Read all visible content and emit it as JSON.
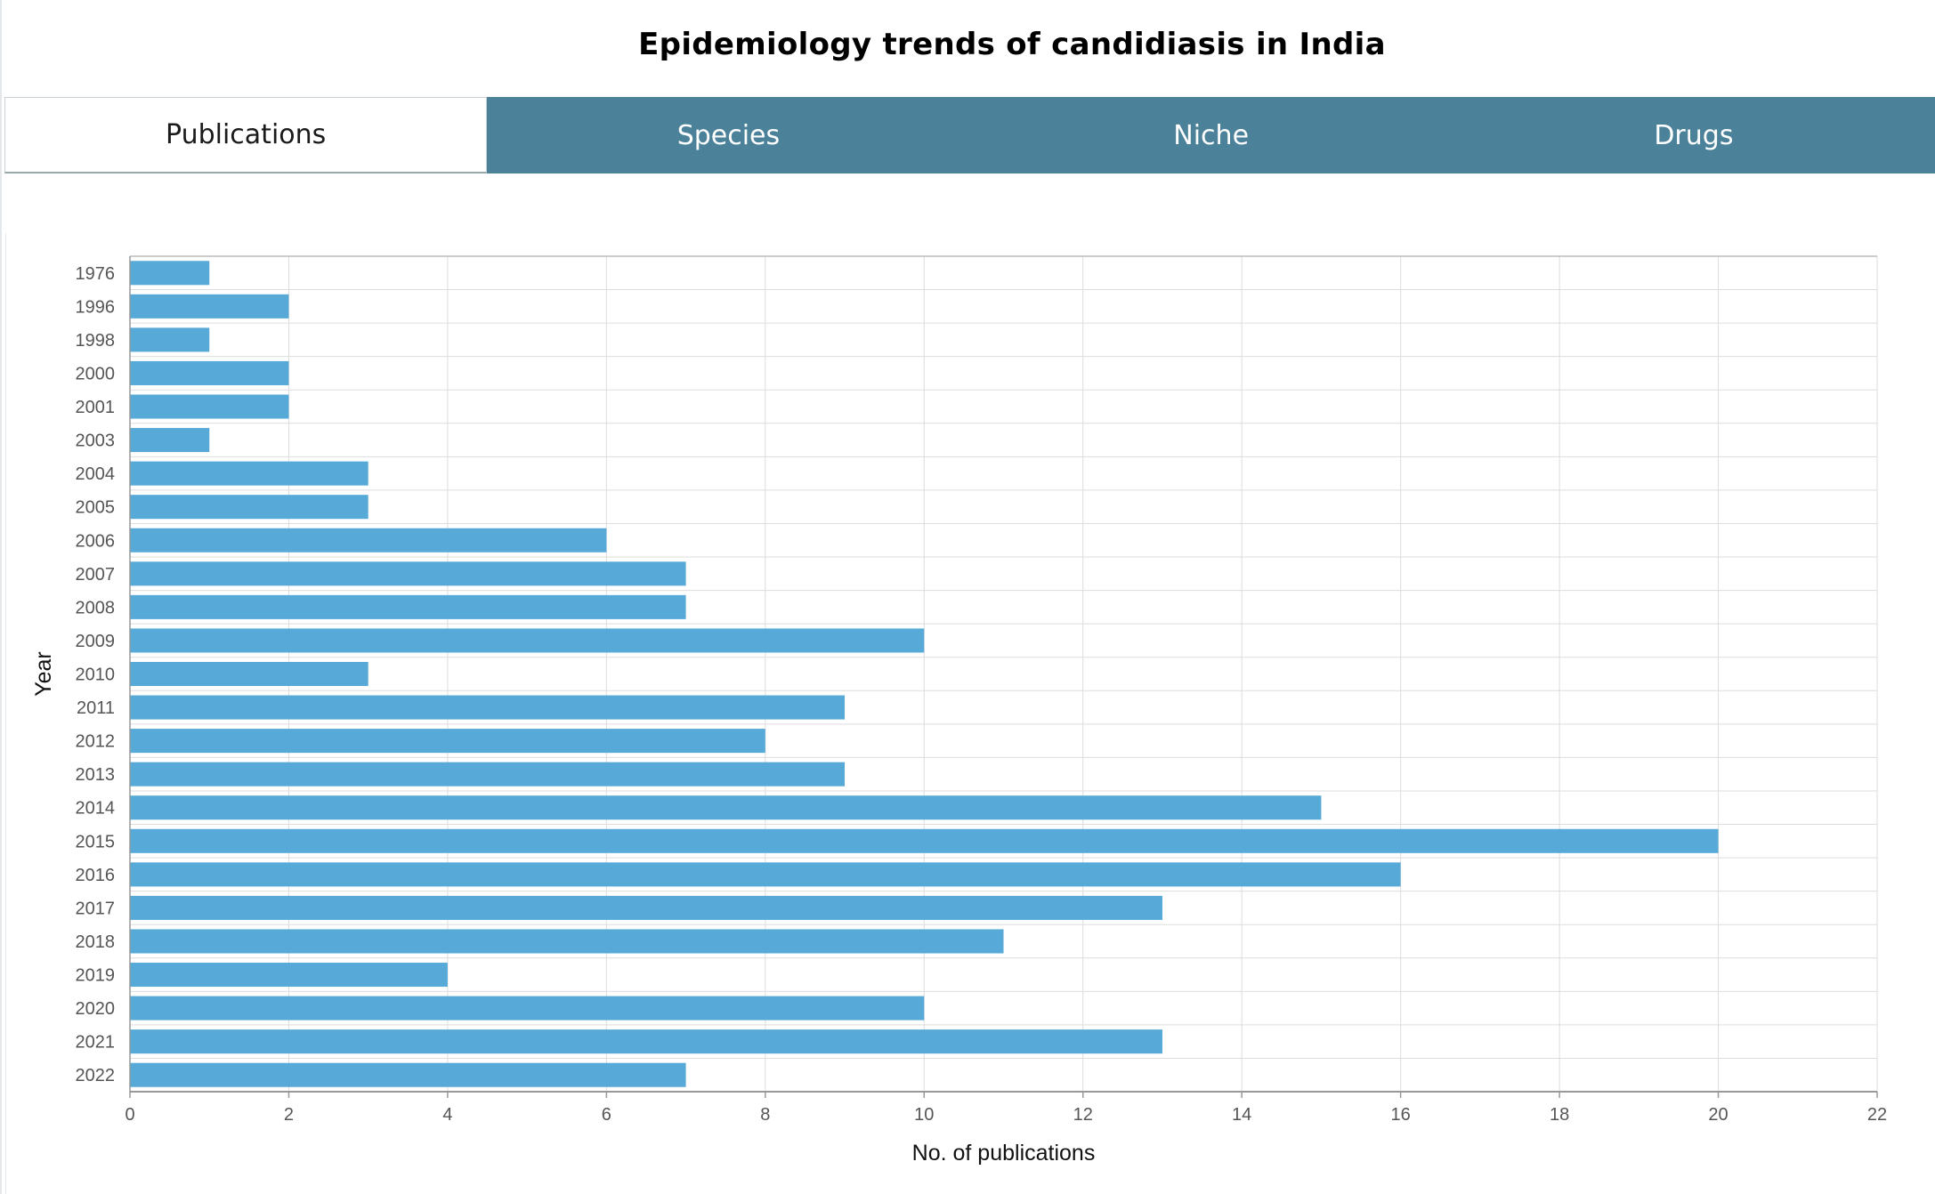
{
  "title": "Epidemiology trends of candidiasis in India",
  "tabs": [
    {
      "label": "Publications",
      "active": true
    },
    {
      "label": "Species",
      "active": false
    },
    {
      "label": "Niche",
      "active": false
    },
    {
      "label": "Drugs",
      "active": false
    }
  ],
  "colors": {
    "bar": "#57aad8",
    "tab_background": "#4b8299",
    "grid": "#dddddd"
  },
  "chart_data": {
    "type": "bar",
    "orientation": "horizontal",
    "xlabel": "No. of publications",
    "ylabel": "Year",
    "xlim": [
      0,
      22
    ],
    "x_ticks": [
      0,
      2,
      4,
      6,
      8,
      10,
      12,
      14,
      16,
      18,
      20,
      22
    ],
    "grid": true,
    "categories": [
      "1976",
      "1996",
      "1998",
      "2000",
      "2001",
      "2003",
      "2004",
      "2005",
      "2006",
      "2007",
      "2008",
      "2009",
      "2010",
      "2011",
      "2012",
      "2013",
      "2014",
      "2015",
      "2016",
      "2017",
      "2018",
      "2019",
      "2020",
      "2021",
      "2022"
    ],
    "values": [
      1,
      2,
      1,
      2,
      2,
      1,
      3,
      3,
      6,
      7,
      7,
      10,
      3,
      9,
      8,
      9,
      15,
      20,
      16,
      13,
      11,
      4,
      10,
      13,
      7
    ]
  }
}
